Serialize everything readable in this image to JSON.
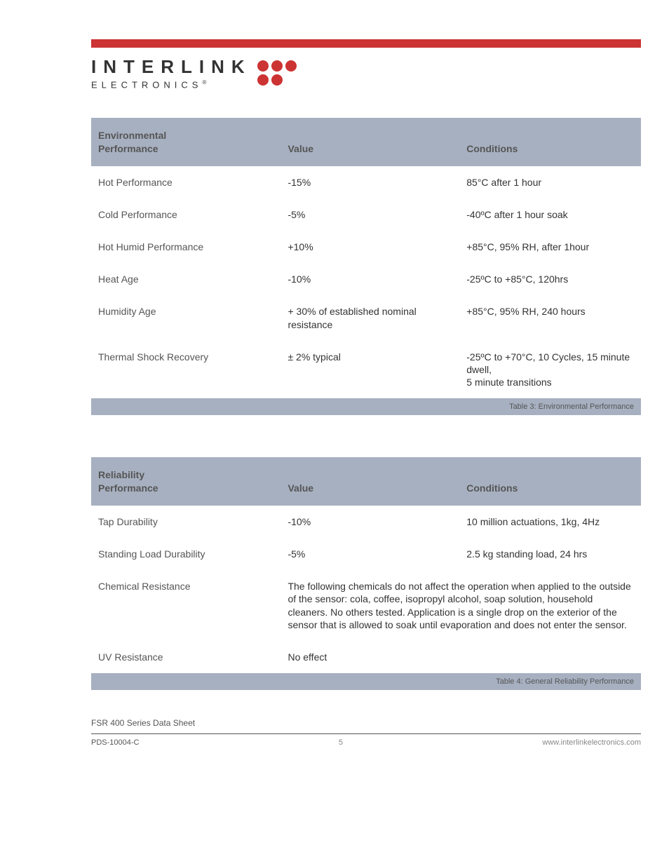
{
  "logo": {
    "top": "INTERLINK",
    "bottom": "ELECTRONICS",
    "dot_color": "#cc3333"
  },
  "table1": {
    "header": {
      "c1a": "Environmental",
      "c1b": "Performance",
      "c2": "Value",
      "c3": "Conditions"
    },
    "rows": [
      {
        "p": "Hot Performance",
        "v": "-15%",
        "c": "85°C after 1 hour"
      },
      {
        "p": "Cold Performance",
        "v": "-5%",
        "c": "-40ºC after 1 hour soak"
      },
      {
        "p": "Hot Humid Performance",
        "v": "+10%",
        "c": "+85°C, 95% RH, after 1hour"
      },
      {
        "p": "Heat Age",
        "v": "-10%",
        "c": "-25ºC to +85°C, 120hrs"
      },
      {
        "p": "Humidity Age",
        "v": "+ 30% of established nominal resistance",
        "c": "+85°C, 95% RH, 240 hours"
      },
      {
        "p": "Thermal Shock Recovery",
        "v": "± 2% typical",
        "c": "-25ºC to +70°C, 10 Cycles, 15 minute dwell,\n5 minute transitions"
      }
    ],
    "footer": "Table 3: Environmental Performance"
  },
  "table2": {
    "header": {
      "c1a": "Reliability",
      "c1b": "Performance",
      "c2": "Value",
      "c3": "Conditions"
    },
    "rows": [
      {
        "p": "Tap Durability",
        "v": "-10%",
        "c": "10 million actuations, 1kg, 4Hz"
      },
      {
        "p": "Standing Load Durability",
        "v": "-5%",
        "c": "2.5 kg standing load, 24 hrs"
      },
      {
        "p": "Chemical Resistance",
        "v": "The following chemicals do not affect the operation when applied to the outside of the sensor: cola, coffee, isopropyl alcohol, soap solution, household cleaners.  No others tested.  Application is a single drop on the exterior of the sensor that is allowed to soak until evaporation and does not enter the sensor.",
        "c": ""
      },
      {
        "p": "UV Resistance",
        "v": "No effect",
        "c": ""
      }
    ],
    "footer": "Table 4: General Reliability Performance"
  },
  "doc": {
    "title": "FSR 400 Series Data Sheet",
    "code": "PDS-10004-C",
    "page": "5",
    "url": "www.interlinkelectronics.com"
  }
}
